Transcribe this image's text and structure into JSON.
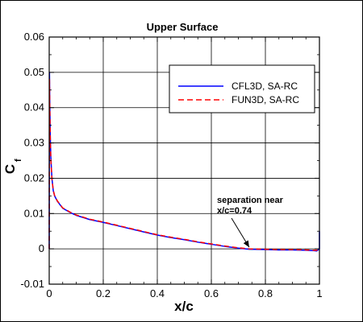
{
  "chart_data": {
    "type": "line",
    "title": "Upper Surface",
    "xlabel": "x/c",
    "ylabel_main": "C",
    "ylabel_sub": "f",
    "xlim": [
      0,
      1
    ],
    "ylim": [
      -0.01,
      0.06
    ],
    "x_ticks": [
      "0",
      "0.2",
      "0.4",
      "0.6",
      "0.8",
      "1"
    ],
    "x_tick_values": [
      0,
      0.2,
      0.4,
      0.6,
      0.8,
      1.0
    ],
    "y_ticks": [
      "-0.01",
      "0",
      "0.01",
      "0.02",
      "0.03",
      "0.04",
      "0.05",
      "0.06"
    ],
    "y_tick_values": [
      -0.01,
      0,
      0.01,
      0.02,
      0.03,
      0.04,
      0.05,
      0.06
    ],
    "grid": true,
    "legend_position": "upper-right",
    "series": [
      {
        "name": "CFL3D, SA-RC",
        "color": "#0000ff",
        "style": "solid",
        "x": [
          0,
          0.001,
          0.002,
          0.004,
          0.006,
          0.01,
          0.015,
          0.02,
          0.03,
          0.05,
          0.08,
          0.1,
          0.15,
          0.2,
          0.25,
          0.3,
          0.35,
          0.4,
          0.45,
          0.5,
          0.55,
          0.6,
          0.65,
          0.7,
          0.74,
          0.8,
          0.85,
          0.9,
          0.95,
          0.98,
          0.99,
          0.995,
          1.0,
          1.0
        ],
        "y": [
          0.0,
          0.05,
          0.042,
          0.032,
          0.026,
          0.02,
          0.0165,
          0.015,
          0.0135,
          0.0115,
          0.0102,
          0.0095,
          0.0083,
          0.0075,
          0.0066,
          0.0057,
          0.0048,
          0.0039,
          0.0032,
          0.0026,
          0.0019,
          0.0013,
          0.0007,
          0.0002,
          -0.0001,
          -0.0002,
          -0.0003,
          -0.0003,
          -0.0004,
          -0.0005,
          -0.0006,
          -0.0003,
          0.0,
          0.005
        ]
      },
      {
        "name": "FUN3D, SA-RC",
        "color": "#ff0000",
        "style": "dashed",
        "x": [
          0,
          0.001,
          0.002,
          0.004,
          0.006,
          0.01,
          0.015,
          0.02,
          0.03,
          0.05,
          0.08,
          0.1,
          0.15,
          0.2,
          0.25,
          0.3,
          0.35,
          0.4,
          0.45,
          0.5,
          0.55,
          0.6,
          0.65,
          0.7,
          0.74,
          0.8,
          0.85,
          0.9,
          0.95,
          0.98,
          0.99,
          0.995,
          1.0
        ],
        "y": [
          0.0,
          0.048,
          0.041,
          0.031,
          0.0255,
          0.0198,
          0.0166,
          0.0151,
          0.0136,
          0.0116,
          0.0103,
          0.0096,
          0.0084,
          0.0076,
          0.0067,
          0.0058,
          0.0049,
          0.004,
          0.0033,
          0.0027,
          0.002,
          0.0014,
          0.0008,
          0.0003,
          0.0,
          -0.0001,
          -0.0002,
          -0.0002,
          -0.0003,
          -0.0004,
          -0.0004,
          -0.0002,
          0.0003
        ]
      }
    ],
    "annotation": {
      "line1": "separation near",
      "line2": "x/c=0.74",
      "arrow_target_x": 0.74,
      "arrow_target_y": 0.0
    }
  }
}
